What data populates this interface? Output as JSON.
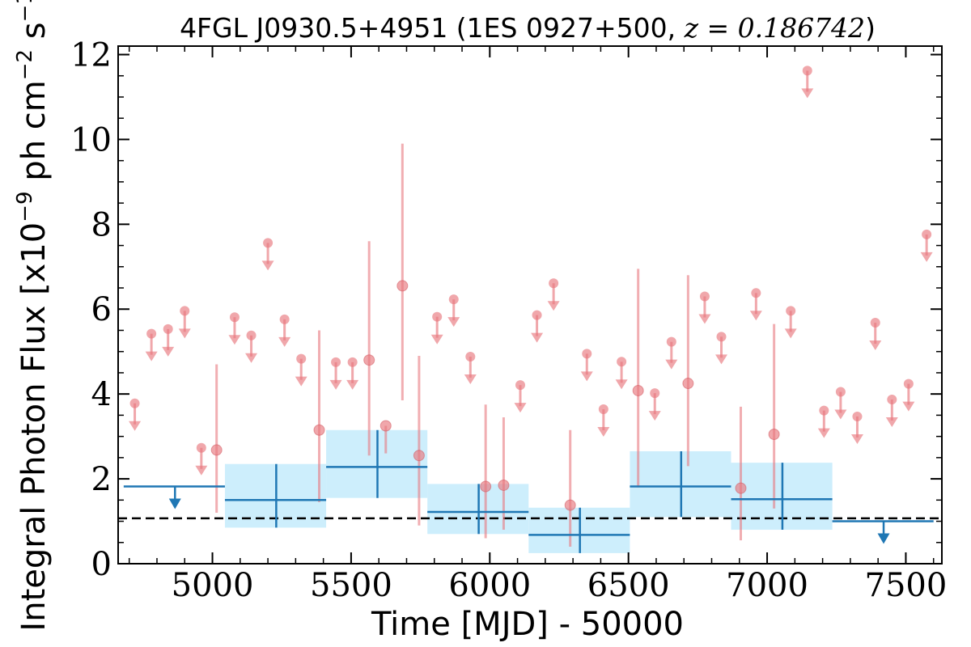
{
  "chart_data": {
    "type": "scatter",
    "title_main": "4FGL J0930.5+4951 (1ES 0927+500, ",
    "title_z": "z = 0.186742",
    "title_close": ")",
    "xlabel": "Time [MJD] - 50000",
    "ylabel_main": "Integral Photon Flux [x10",
    "ylabel_exp1": "−9",
    "ylabel_mid": " ph cm",
    "ylabel_exp2": "−2",
    "ylabel_mid2": " s",
    "ylabel_exp3": "−1",
    "ylabel_close": "]",
    "xlim": [
      4660,
      7630
    ],
    "ylim": [
      0,
      12.2
    ],
    "x_ticks": [
      5000,
      5500,
      6000,
      6500,
      7000,
      7500
    ],
    "x_tick_labels": [
      "5000",
      "5500",
      "6000",
      "6500",
      "7000",
      "7500"
    ],
    "y_ticks": [
      0,
      2,
      4,
      6,
      8,
      10,
      12
    ],
    "y_tick_labels": [
      "0",
      "2",
      "4",
      "6",
      "8",
      "10",
      "12"
    ],
    "reference_line": 1.07,
    "colors": {
      "short_bins": "#e8787e",
      "long_bins": "#1f77b4",
      "band_fill": "#cdeefc",
      "reference": "#000000"
    },
    "short_bin_points": [
      {
        "x": 5015,
        "y": 2.68,
        "ylo": 1.2,
        "yhi": 4.7
      },
      {
        "x": 5385,
        "y": 3.15,
        "ylo": 1.45,
        "yhi": 5.5
      },
      {
        "x": 5565,
        "y": 4.8,
        "ylo": 2.55,
        "yhi": 7.6
      },
      {
        "x": 5625,
        "y": 3.25,
        "ylo": 2.6,
        "yhi": 3.25
      },
      {
        "x": 5685,
        "y": 6.55,
        "ylo": 3.85,
        "yhi": 9.9
      },
      {
        "x": 5745,
        "y": 2.55,
        "ylo": 0.9,
        "yhi": 4.9
      },
      {
        "x": 5985,
        "y": 1.82,
        "ylo": 0.6,
        "yhi": 3.75
      },
      {
        "x": 6050,
        "y": 1.85,
        "ylo": 0.8,
        "yhi": 3.45
      },
      {
        "x": 6290,
        "y": 1.38,
        "ylo": 0.4,
        "yhi": 3.15
      },
      {
        "x": 6535,
        "y": 4.08,
        "ylo": 1.8,
        "yhi": 6.95
      },
      {
        "x": 6715,
        "y": 4.25,
        "ylo": 2.3,
        "yhi": 6.8
      },
      {
        "x": 6905,
        "y": 1.78,
        "ylo": 0.55,
        "yhi": 3.7
      },
      {
        "x": 7025,
        "y": 3.05,
        "ylo": 1.3,
        "yhi": 5.65
      }
    ],
    "short_bin_upper_limits": [
      {
        "x": 4720,
        "y": 3.78
      },
      {
        "x": 4780,
        "y": 5.42
      },
      {
        "x": 4840,
        "y": 5.53
      },
      {
        "x": 4900,
        "y": 5.96
      },
      {
        "x": 4960,
        "y": 2.73
      },
      {
        "x": 5080,
        "y": 5.81
      },
      {
        "x": 5140,
        "y": 5.38
      },
      {
        "x": 5200,
        "y": 7.56
      },
      {
        "x": 5260,
        "y": 5.76
      },
      {
        "x": 5320,
        "y": 4.83
      },
      {
        "x": 5445,
        "y": 4.75
      },
      {
        "x": 5505,
        "y": 4.75
      },
      {
        "x": 5810,
        "y": 5.82
      },
      {
        "x": 5870,
        "y": 6.23
      },
      {
        "x": 5930,
        "y": 4.88
      },
      {
        "x": 6110,
        "y": 4.21
      },
      {
        "x": 6170,
        "y": 5.86
      },
      {
        "x": 6230,
        "y": 6.61
      },
      {
        "x": 6350,
        "y": 4.95
      },
      {
        "x": 6410,
        "y": 3.64
      },
      {
        "x": 6475,
        "y": 4.76
      },
      {
        "x": 6595,
        "y": 4.02
      },
      {
        "x": 6655,
        "y": 5.23
      },
      {
        "x": 6775,
        "y": 6.3
      },
      {
        "x": 6835,
        "y": 5.35
      },
      {
        "x": 6960,
        "y": 6.38
      },
      {
        "x": 7085,
        "y": 5.96
      },
      {
        "x": 7145,
        "y": 11.62
      },
      {
        "x": 7205,
        "y": 3.61
      },
      {
        "x": 7265,
        "y": 4.05
      },
      {
        "x": 7325,
        "y": 3.47
      },
      {
        "x": 7390,
        "y": 5.68
      },
      {
        "x": 7450,
        "y": 3.87
      },
      {
        "x": 7510,
        "y": 4.24
      },
      {
        "x": 7575,
        "y": 7.76
      }
    ],
    "long_bin_points": [
      {
        "x": 5230,
        "xmin": 5045,
        "xmax": 5410,
        "y": 1.5,
        "ylo": 0.85,
        "yhi": 2.35
      },
      {
        "x": 5595,
        "xmin": 5410,
        "xmax": 5775,
        "y": 2.28,
        "ylo": 1.55,
        "yhi": 3.15
      },
      {
        "x": 5960,
        "xmin": 5775,
        "xmax": 6140,
        "y": 1.22,
        "ylo": 0.7,
        "yhi": 1.88
      },
      {
        "x": 6325,
        "xmin": 6140,
        "xmax": 6505,
        "y": 0.68,
        "ylo": 0.25,
        "yhi": 1.32
      },
      {
        "x": 6690,
        "xmin": 6505,
        "xmax": 6870,
        "y": 1.82,
        "ylo": 1.1,
        "yhi": 2.65
      },
      {
        "x": 7055,
        "xmin": 6870,
        "xmax": 7235,
        "y": 1.52,
        "ylo": 0.8,
        "yhi": 2.38
      }
    ],
    "long_bin_upper_limits": [
      {
        "x": 4865,
        "xmin": 4680,
        "xmax": 5045,
        "y": 1.82
      },
      {
        "x": 7420,
        "xmin": 7235,
        "xmax": 7600,
        "y": 1.0
      }
    ]
  }
}
